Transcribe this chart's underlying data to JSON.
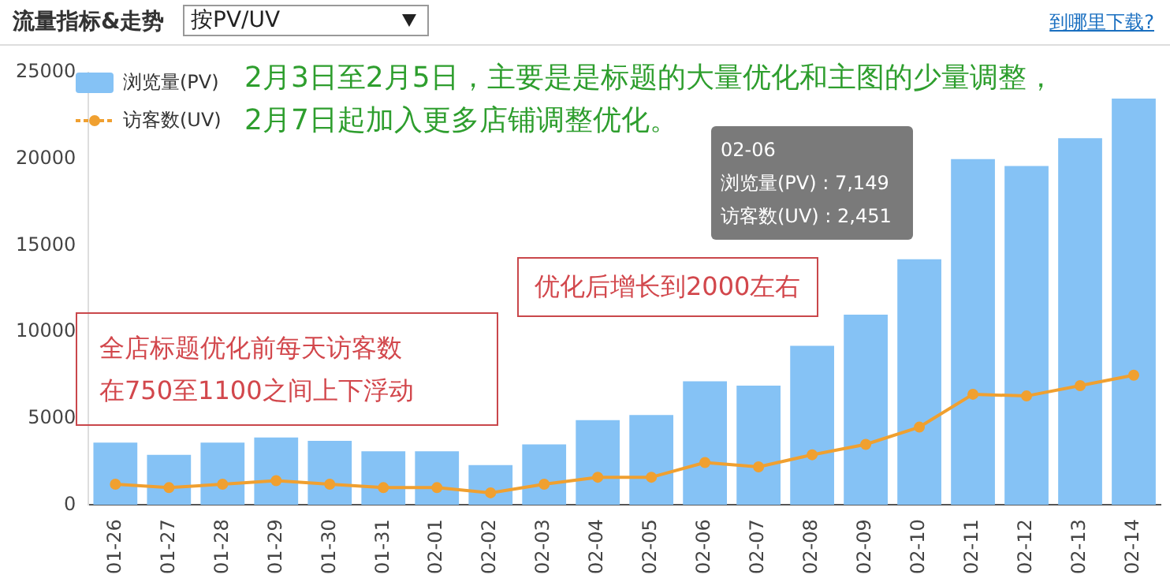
{
  "chart_data": {
    "type": "bar",
    "title": "流量指标&走势",
    "categories": [
      "01-26",
      "01-27",
      "01-28",
      "01-29",
      "01-30",
      "01-31",
      "02-01",
      "02-02",
      "02-03",
      "02-04",
      "02-05",
      "02-06",
      "02-07",
      "02-08",
      "02-09",
      "02-10",
      "02-11",
      "02-12",
      "02-13",
      "02-14"
    ],
    "series": [
      {
        "name": "浏览量(PV)",
        "color": "#85c2f5",
        "values": [
          3600,
          2900,
          3600,
          3900,
          3700,
          3100,
          3100,
          2300,
          3500,
          4900,
          5200,
          7149,
          6900,
          9200,
          11000,
          14200,
          20000,
          19600,
          21200,
          23500
        ]
      },
      {
        "name": "访客数(UV)",
        "type": "line",
        "color": "#f0a030",
        "values": [
          1200,
          1000,
          1200,
          1400,
          1200,
          1000,
          1000,
          700,
          1200,
          1600,
          1600,
          2451,
          2200,
          2900,
          3500,
          4500,
          6400,
          6300,
          6900,
          7500
        ]
      }
    ],
    "ylim": [
      0,
      25000
    ],
    "yticks": [
      0,
      5000,
      10000,
      15000,
      20000,
      25000
    ],
    "grid": false,
    "legend": "top left",
    "marker": "circle",
    "line_style": "solid",
    "annotations": [
      "2月3日至2月5日，主要是是标题的大量优化和主图的少量调整，",
      "2月7日起加入更多店铺调整优化。",
      "全店标题优化前每天访客数",
      "在750至1100之间上下浮动",
      "优化后增长到2000左右",
      "02-06",
      "浏览量(PV) : 7,149",
      "访客数(UV) : 2,451",
      "按PV/UV",
      "到哪里下载?"
    ]
  }
}
